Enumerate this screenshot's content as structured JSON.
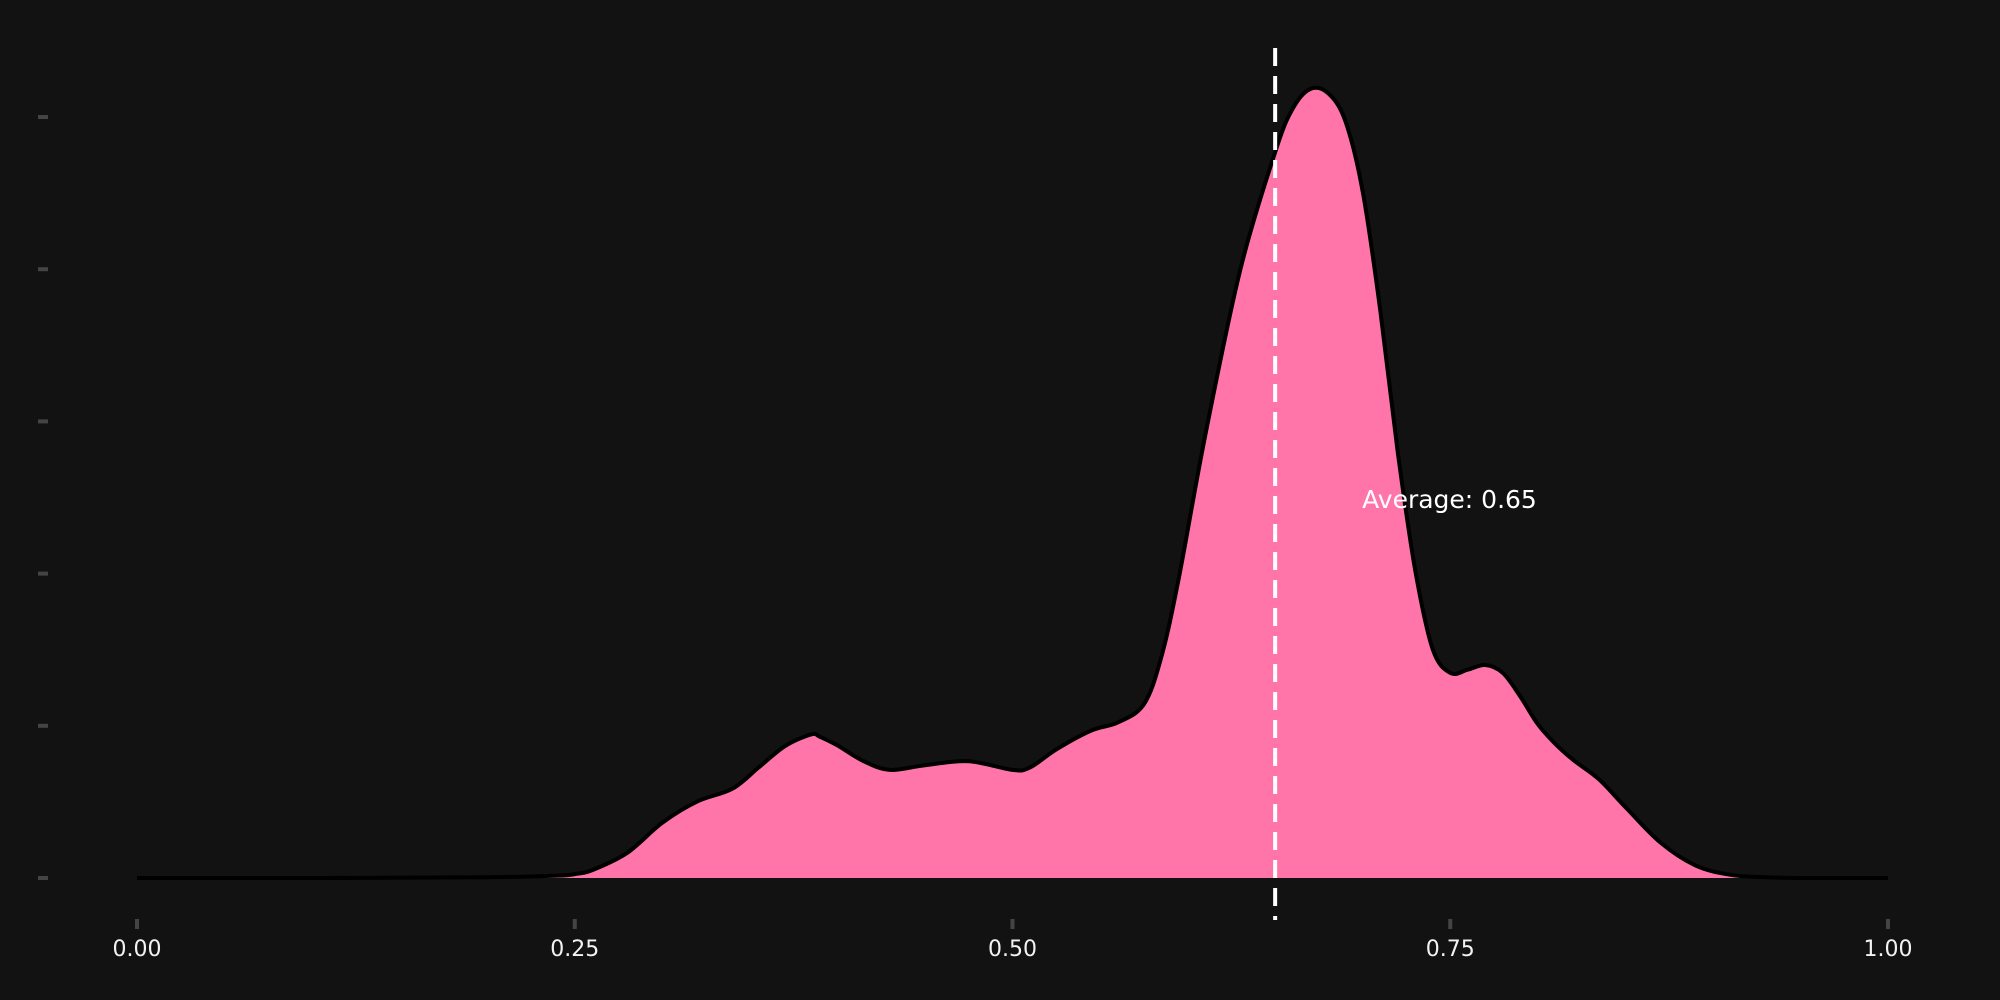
{
  "chart_data": {
    "type": "area",
    "title": "",
    "xlabel": "",
    "ylabel": "",
    "xlim": [
      0,
      1
    ],
    "x_ticks": [
      0,
      0.25,
      0.5,
      0.75,
      1
    ],
    "x_tick_labels": [
      "0.00",
      "0.25",
      "0.50",
      "0.75",
      "1.00"
    ],
    "y_tick_count": 6,
    "grid": false,
    "colors": {
      "background": "#121212",
      "fill": "#ff75aa",
      "outline": "#000000",
      "reference_line": "#ffffff",
      "tick": "#444444"
    },
    "series": [
      {
        "x": [
          0.0,
          0.1,
          0.2,
          0.24,
          0.25,
          0.26,
          0.28,
          0.3,
          0.32,
          0.34,
          0.355,
          0.37,
          0.385,
          0.39,
          0.4,
          0.415,
          0.43,
          0.45,
          0.475,
          0.5,
          0.51,
          0.525,
          0.545,
          0.56,
          0.575,
          0.585,
          0.595,
          0.61,
          0.63,
          0.65,
          0.66,
          0.67,
          0.68,
          0.69,
          0.7,
          0.71,
          0.72,
          0.73,
          0.74,
          0.75,
          0.76,
          0.77,
          0.78,
          0.79,
          0.8,
          0.81,
          0.82,
          0.835,
          0.85,
          0.87,
          0.89,
          0.91,
          0.93,
          0.95,
          0.97,
          1.0
        ],
        "y": [
          0.0,
          0.0,
          0.001,
          0.003,
          0.005,
          0.01,
          0.032,
          0.07,
          0.097,
          0.113,
          0.14,
          0.167,
          0.182,
          0.179,
          0.168,
          0.148,
          0.137,
          0.143,
          0.148,
          0.137,
          0.14,
          0.163,
          0.187,
          0.197,
          0.22,
          0.28,
          0.38,
          0.56,
          0.77,
          0.92,
          0.975,
          1.0,
          0.995,
          0.96,
          0.87,
          0.72,
          0.54,
          0.39,
          0.29,
          0.26,
          0.264,
          0.27,
          0.26,
          0.23,
          0.195,
          0.17,
          0.15,
          0.125,
          0.09,
          0.045,
          0.016,
          0.004,
          0.001,
          0.0,
          0.0,
          0.0
        ]
      }
    ],
    "reference_line": {
      "x": 0.65,
      "label": "Average: 0.65"
    }
  }
}
